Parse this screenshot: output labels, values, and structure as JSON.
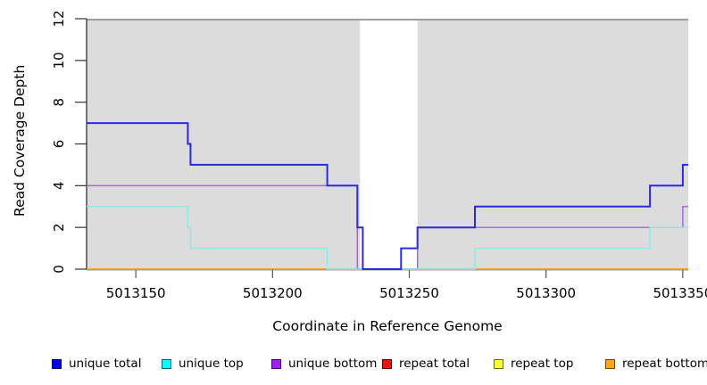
{
  "chart_data": {
    "type": "line",
    "subtype": "step",
    "title": "",
    "xlabel": "Coordinate in Reference Genome",
    "ylabel": "Read Coverage Depth",
    "x_axis": {
      "min": 5013132,
      "max": 5013352,
      "ticks": [
        5013150,
        5013200,
        5013250,
        5013300,
        5013350
      ]
    },
    "y_axis": {
      "min": 0,
      "max": 12,
      "ticks": [
        0,
        2,
        4,
        6,
        8,
        10,
        12
      ]
    },
    "grid": false,
    "axis_color": "#333333",
    "tick_color": "#555555",
    "plot_background": {
      "fill": "#dcdcdc",
      "top_edge_color": "#9e9e9e",
      "gap_region": {
        "from": 5013232,
        "to": 5013253,
        "fill": "#ffffff"
      }
    },
    "series": [
      {
        "name": "unique total",
        "line_color": "#2a2ae0",
        "swatch_fill": "#0000e8",
        "swatch_border": "#00007a",
        "line_width": 2,
        "steps": [
          [
            5013132,
            7
          ],
          [
            5013169,
            6
          ],
          [
            5013170,
            5
          ],
          [
            5013220,
            4
          ],
          [
            5013231,
            2
          ],
          [
            5013233,
            0
          ],
          [
            5013247,
            1
          ],
          [
            5013253,
            2
          ],
          [
            5013274,
            3
          ],
          [
            5013338,
            4
          ],
          [
            5013350,
            5
          ]
        ]
      },
      {
        "name": "unique top",
        "line_color": "#8fe9e9",
        "swatch_fill": "#00ffff",
        "swatch_border": "#006868",
        "line_width": 1.4,
        "steps": [
          [
            5013132,
            3
          ],
          [
            5013169,
            2
          ],
          [
            5013170,
            1
          ],
          [
            5013220,
            0
          ],
          [
            5013274,
            1
          ],
          [
            5013338,
            2
          ]
        ]
      },
      {
        "name": "unique bottom",
        "line_color": "#a55fe0",
        "swatch_fill": "#a020f0",
        "swatch_border": "#4b0082",
        "line_width": 1.4,
        "steps": [
          [
            5013132,
            4
          ],
          [
            5013231,
            0
          ],
          [
            5013253,
            2
          ],
          [
            5013350,
            3
          ]
        ]
      },
      {
        "name": "repeat total",
        "line_color": "#dd0000",
        "swatch_fill": "#ee1111",
        "swatch_border": "#5a0000",
        "line_width": 1.4,
        "steps": [
          [
            5013132,
            0
          ]
        ]
      },
      {
        "name": "repeat top",
        "line_color": "#ffff00",
        "swatch_fill": "#ffff33",
        "swatch_border": "#6e6e00",
        "line_width": 1.4,
        "steps": [
          [
            5013132,
            0
          ]
        ]
      },
      {
        "name": "repeat bottom",
        "line_color": "#ff9d17",
        "swatch_fill": "#ffa516",
        "swatch_border": "#7a4800",
        "line_width": 1.6,
        "steps": [
          [
            5013132,
            0
          ]
        ]
      }
    ],
    "unlabeled_segments": [
      {
        "name": "green-zero-segment",
        "color": "#74c476",
        "line_width": 1.4,
        "from": 5013220,
        "to": 5013274,
        "value": 0
      }
    ],
    "z_order": [
      "repeat total",
      "repeat top",
      "repeat bottom",
      "green-zero-segment",
      "unique bottom",
      "unique top",
      "unique total"
    ],
    "legend": [
      "unique total",
      "unique top",
      "unique bottom",
      "repeat total",
      "repeat top",
      "repeat bottom"
    ]
  }
}
